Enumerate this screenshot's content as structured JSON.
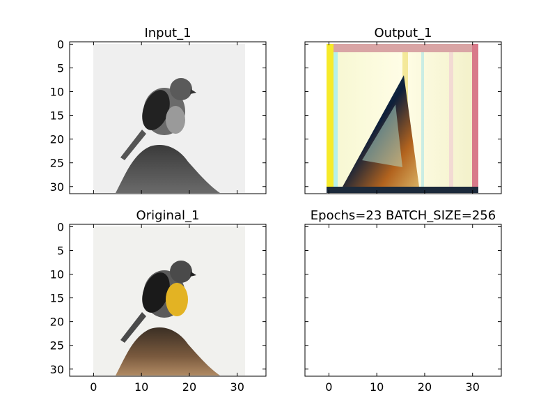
{
  "chart_data": [
    {
      "type": "image",
      "title": "Input_1",
      "content": "grayscale bird perched on a rock",
      "xlim": [
        -5,
        36
      ],
      "ylim": [
        31.5,
        -0.5
      ],
      "yticks": [
        0,
        5,
        10,
        15,
        20,
        25,
        30
      ],
      "xticks_visible": false,
      "yticks_visible": true
    },
    {
      "type": "image",
      "title": "Output_1",
      "content": "noisy color reconstruction, pale yellow with red/green/blue fringes",
      "xlim": [
        -5,
        36
      ],
      "ylim": [
        31.5,
        -0.5
      ],
      "yticks": [
        0,
        5,
        10,
        15,
        20,
        25,
        30
      ],
      "xticks_visible": false,
      "yticks_visible": false
    },
    {
      "type": "image",
      "title": "Original_1",
      "content": "color bird with yellow breast perched on a brown rock",
      "xlim": [
        -5,
        36
      ],
      "ylim": [
        31.5,
        -0.5
      ],
      "yticks": [
        0,
        5,
        10,
        15,
        20,
        25,
        30
      ],
      "xticks": [
        0,
        10,
        20,
        30
      ],
      "xticks_visible": true,
      "yticks_visible": true
    },
    {
      "type": "empty",
      "title": "Epochs=23 BATCH_SIZE=256",
      "xlim": [
        -5,
        36
      ],
      "ylim": [
        31.5,
        -0.5
      ],
      "xticks": [
        0,
        10,
        20,
        30
      ],
      "xticks_visible": true,
      "yticks_visible": false
    }
  ]
}
